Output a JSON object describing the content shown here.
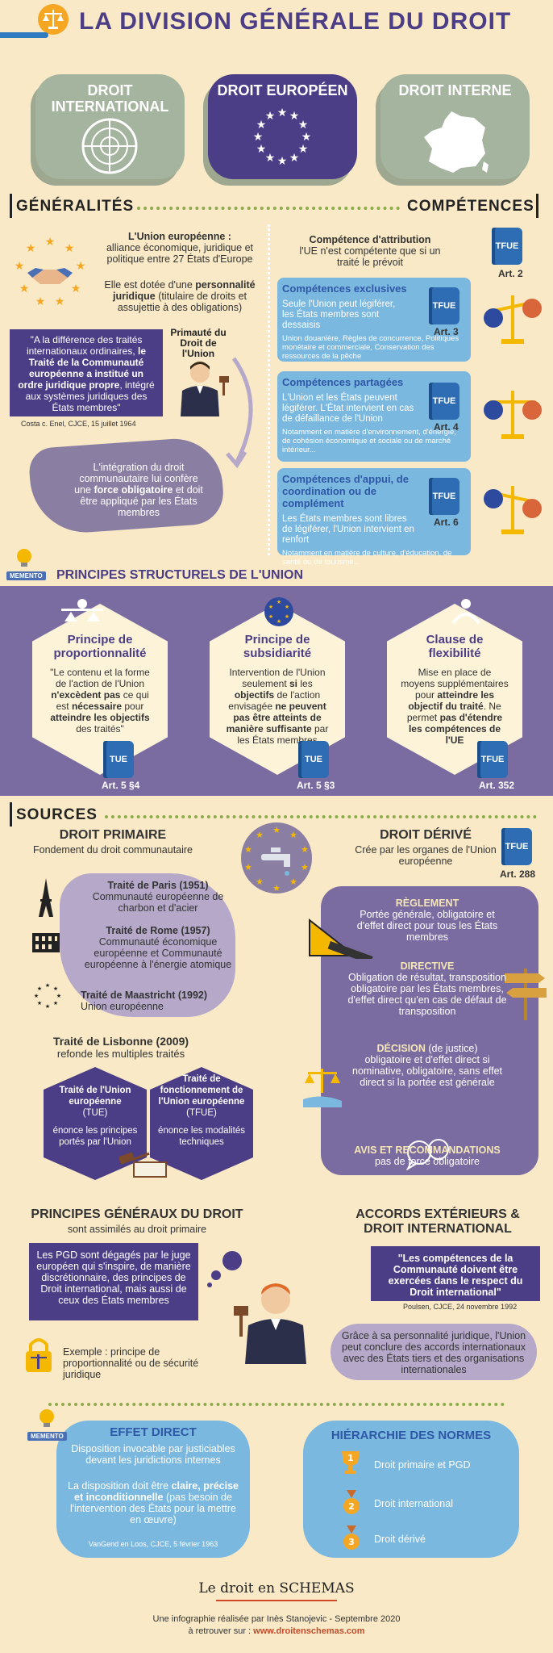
{
  "header": {
    "title": "LA DIVISION GÉNÉRALE DU DROIT"
  },
  "categories": [
    {
      "label": "DROIT INTERNATIONAL",
      "color": "#a5b49e"
    },
    {
      "label": "DROIT EUROPÉEN",
      "color": "#4b3d86"
    },
    {
      "label": "DROIT INTERNE",
      "color": "#a5b49e"
    }
  ],
  "generalites": {
    "heading": "GÉNÉRALITÉS",
    "union_title": "L'Union européenne :",
    "union_desc": "alliance économique, juridique et politique entre 27 États d'Europe",
    "personality_pre": "Elle est dotée d'une ",
    "personality_bold": "personnalité juridique",
    "personality_post": " (titulaire de droits et assujettie à des obligations)",
    "quote_a": "\"A la différence des traités internationaux ordinaires, ",
    "quote_b": "le Traité de la Communauté européenne a institué un ordre juridique propre",
    "quote_c": ", intégré aux systèmes juridiques des États membres\"",
    "quote_source": "Costa c. Enel, CJCE, 15 juillet 1964",
    "primacy": "Primauté du Droit de l'Union",
    "integration_pre": "L'intégration du droit communautaire lui confère une ",
    "integration_bold": "force obligatoire",
    "integration_post": " et doit être appliqué par les États membres"
  },
  "competences": {
    "heading": "COMPÉTENCES",
    "attribution_title": "Compétence d'attribution",
    "attribution_desc": "l'UE n'est compétente que si un traité le prévoit",
    "attribution_book": "TFUE",
    "attribution_art": "Art. 2",
    "items": [
      {
        "title": "Compétences exclusives",
        "desc": "Seule l'Union peut légiférer, les États membres sont dessaisis",
        "examples": "Union douanière, Règles de concurrence, Politiques monétaire et commerciale, Conservation des ressources de la pêche",
        "book": "TFUE",
        "art": "Art. 3"
      },
      {
        "title": "Compétences partagées",
        "desc": "L'Union et les États peuvent légiférer. L'État intervient en cas de défaillance de l'Union",
        "examples": "Notamment en matière d'environnement, d'énergie, de cohésion économique et sociale ou de marché intérieur...",
        "book": "TFUE",
        "art": "Art. 4"
      },
      {
        "title": "Compétences d'appui, de coordination ou de complément",
        "desc": "Les États membres sont libres de légiférer, l'Union intervient en renfort",
        "examples": "Notamment en matière de culture, d'éducation, de santé ou de tourisme...",
        "book": "TFUE",
        "art": "Art. 6"
      }
    ]
  },
  "principes": {
    "memento": "MEMENTO",
    "heading": "PRINCIPES STRUCTURELS DE L'UNION",
    "items": [
      {
        "title": "Principe de proportionnalité",
        "a": "\"Le contenu et la forme de l'action de l'Union ",
        "b": "n'excèdent pas",
        "c": " ce qui est ",
        "d": "nécessaire",
        "e": " pour ",
        "f": "atteindre les objectifs",
        "g": " des traités\"",
        "book": "TUE",
        "art": "Art. 5 §4"
      },
      {
        "title": "Principe de subsidiarité",
        "a": "Intervention de l'Union seulement ",
        "b": "si",
        "c": " les ",
        "d": "objectifs",
        "e": " de l'action envisagée ",
        "f": "ne peuvent pas être atteints de manière suffisante",
        "g": " par les États membres",
        "book": "TUE",
        "art": "Art. 5 §3"
      },
      {
        "title": "Clause de flexibilité",
        "a": "Mise en place de moyens supplémentaires pour ",
        "b": "atteindre les objectif du traité",
        "c": ". Ne permet ",
        "d": "pas d'étendre les compétences de l'UE",
        "e": "",
        "f": "",
        "g": "",
        "book": "TFUE",
        "art": "Art. 352"
      }
    ]
  },
  "sources": {
    "heading": "SOURCES",
    "primaire": {
      "title": "DROIT PRIMAIRE",
      "subtitle": "Fondement du droit communautaire",
      "treaties": [
        {
          "name": "Traité de Paris (1951)",
          "desc": "Communauté européenne de charbon et d'acier"
        },
        {
          "name": "Traité de Rome (1957)",
          "desc": "Communauté économique européenne et Communauté européenne à l'énergie atomique"
        },
        {
          "name": "Traité de Maastricht (1992)",
          "desc": "Union européenne"
        }
      ],
      "lisbonne": "Traité de Lisbonne (2009)",
      "lisbonne_desc": "refonde les multiples traités",
      "tue_title": "Traité de l'Union européenne",
      "tue_abbr": "(TUE)",
      "tue_desc": "énonce les principes portés par l'Union",
      "tfue_title": "Traité de fonctionnement de l'Union européenne",
      "tfue_abbr": "(TFUE)",
      "tfue_desc": "énonce les modalités techniques"
    },
    "derive": {
      "title": "DROIT DÉRIVÉ",
      "subtitle": "Crée par les organes de l'Union européenne",
      "book": "TFUE",
      "art": "Art. 288",
      "items": [
        {
          "title": "RÈGLEMENT",
          "body": "Portée générale, obligatoire et d'effet direct pour tous les États membres"
        },
        {
          "title": "DIRECTIVE",
          "body": "Obligation de résultat, transposition obligatoire par les États membres, d'effet direct qu'en cas de défaut de transposition"
        },
        {
          "title": "DÉCISION",
          "title_extra": " (de justice)",
          "body": "obligatoire et d'effet direct si nominative, obligatoire, sans effet direct si la portée est générale"
        },
        {
          "title": "AVIS ET RECOMMANDATIONS",
          "body": "pas de force obligatoire"
        }
      ]
    }
  },
  "pgd": {
    "title": "PRINCIPES GÉNÉRAUX DU DROIT",
    "subtitle": "sont assimilés au droit primaire",
    "box": "Les PGD sont dégagés par le juge européen qui s'inspire, de manière discrétionnaire, des principes de Droit international, mais aussi de ceux des États membres",
    "example": "Exemple : principe de proportionnalité ou de sécurité juridique"
  },
  "accords": {
    "title": "ACCORDS EXTÉRIEURS & DROIT INTERNATIONAL",
    "quote": "\"Les compétences de la Communauté doivent être exercées dans le respect du Droit international\"",
    "source": "Poulsen, CJCE, 24 novembre 1992",
    "desc": "Grâce à sa personnalité juridique, l'Union peut conclure des accords internationaux avec des États tiers et des organisations internationales"
  },
  "effet": {
    "memento": "MEMENTO",
    "title": "EFFET DIRECT",
    "p1": "Disposition invocable par justiciables devant les juridictions internes",
    "p2a": "La disposition doit être ",
    "p2b": "claire, précise et inconditionnelle",
    "p2c": " (pas besoin de l'intervention des États pour la mettre en œuvre)",
    "source": "VanGend en Loos, CJCE, 5 février 1963"
  },
  "hierarchie": {
    "title": "HIÉRARCHIE DES NORMES",
    "items": [
      {
        "rank": "1",
        "label": "Droit primaire et PGD"
      },
      {
        "rank": "2",
        "label": "Droit international"
      },
      {
        "rank": "3",
        "label": "Droit dérivé"
      }
    ]
  },
  "footer": {
    "logo": "Le droit en SCHEMAS",
    "credit": "Une infographie réalisée par Inès Stanojevic - Septembre 2020",
    "link_pre": "à retrouver sur : ",
    "link": "www.droitenschemas.com"
  }
}
